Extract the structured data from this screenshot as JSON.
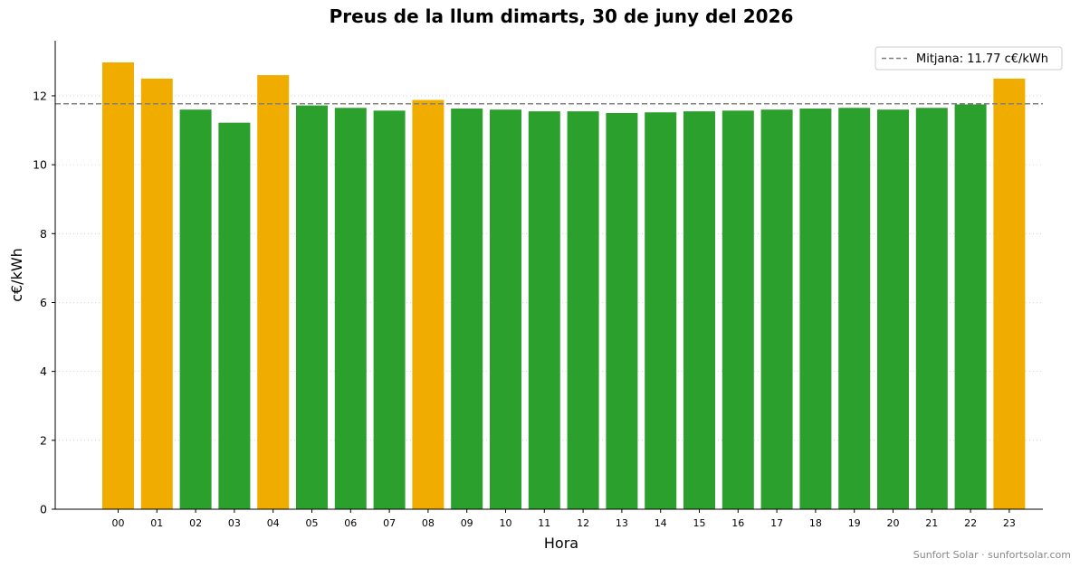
{
  "chart_data": {
    "type": "bar",
    "title": "Preus de la llum dimarts, 30 de juny del 2026",
    "xlabel": "Hora",
    "ylabel": "c€/kWh",
    "ylim": [
      0,
      13.6
    ],
    "yticks": [
      0,
      2,
      4,
      6,
      8,
      10,
      12
    ],
    "grid": "horizontal dotted",
    "legend_position": "top-right",
    "categories": [
      "00",
      "01",
      "02",
      "03",
      "04",
      "05",
      "06",
      "07",
      "08",
      "09",
      "10",
      "11",
      "12",
      "13",
      "14",
      "15",
      "16",
      "17",
      "18",
      "19",
      "20",
      "21",
      "22",
      "23"
    ],
    "values": [
      12.97,
      12.5,
      11.6,
      11.22,
      12.6,
      11.72,
      11.65,
      11.57,
      11.88,
      11.63,
      11.6,
      11.55,
      11.55,
      11.5,
      11.52,
      11.55,
      11.57,
      11.6,
      11.63,
      11.65,
      11.6,
      11.65,
      11.75,
      12.5
    ],
    "above_average_color": "#f0ad00",
    "below_average_color": "#2ca02c",
    "average": {
      "value": 11.77,
      "label": "Mitjana: 11.77 c€/kWh",
      "color": "#808080",
      "style": "dashed"
    },
    "credit": "Sunfort Solar · sunfortsolar.com"
  }
}
